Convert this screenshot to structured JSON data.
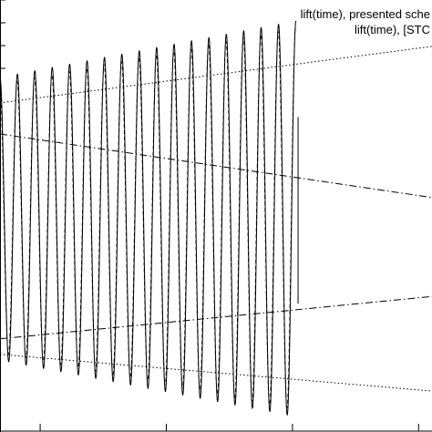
{
  "chart_data": {
    "type": "line",
    "title": "",
    "xlabel": "",
    "ylabel": "",
    "xlim": [
      0,
      100
    ],
    "ylim": [
      -1.25,
      1.25
    ],
    "grid": false,
    "legend": {
      "placement": "top-right",
      "entries": [
        "lift(time), presented sche",
        "lift(time), [STC"
      ]
    },
    "series": [
      {
        "name": "lift(time), presented sche",
        "line_style": "solid",
        "color": "#000000",
        "oscillation": {
          "x_start": 0,
          "x_end": 68.5,
          "cycles": 17,
          "envelope_start": 1.0,
          "envelope_end": 1.4
        }
      },
      {
        "name": "lift(time), [STC",
        "line_style": "dashed",
        "color": "#000000",
        "oscillation": {
          "x_start": 0,
          "x_end": 68.5,
          "cycles": 17,
          "envelope_start": 0.95,
          "envelope_end": 1.35
        }
      }
    ],
    "reference_lines": [
      {
        "style": "dotted",
        "x": [
          0,
          100
        ],
        "y": [
          0.82,
          1.22
        ]
      },
      {
        "style": "dotted",
        "x": [
          0,
          100
        ],
        "y": [
          -0.96,
          -1.22
        ]
      },
      {
        "style": "dashdot",
        "x": [
          0,
          100
        ],
        "y": [
          0.6,
          0.15
        ]
      },
      {
        "style": "dashdot",
        "x": [
          0,
          100
        ],
        "y": [
          -0.85,
          -0.55
        ]
      }
    ],
    "vertical_segment": {
      "x": 69,
      "y": [
        -0.6,
        0.72
      ]
    }
  }
}
